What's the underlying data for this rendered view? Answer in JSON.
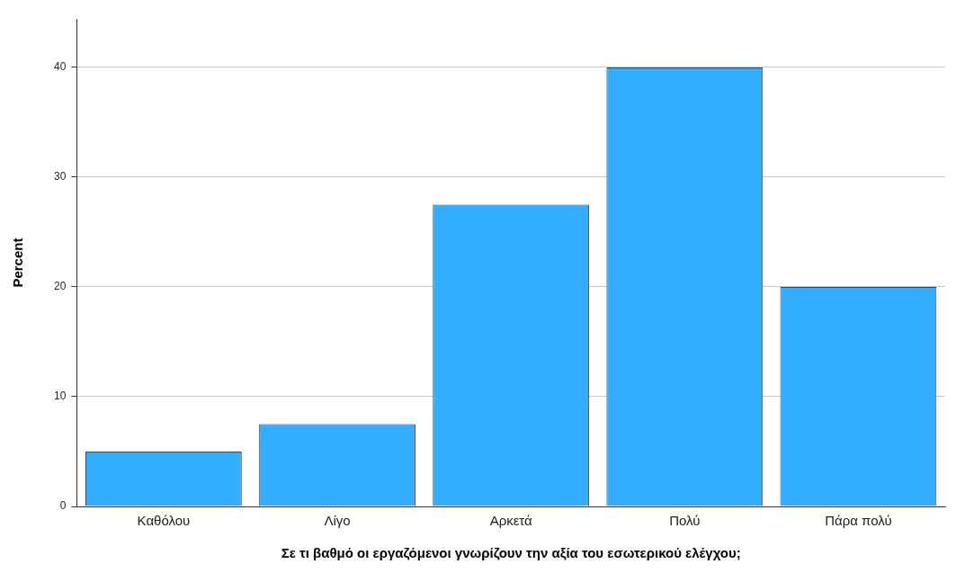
{
  "chart_data": {
    "type": "bar",
    "xlabel": "Σε τι βαθμό οι εργαζόμενοι γνωρίζουν την αξία του εσωτερικού ελέγχου;",
    "ylabel": "Percent",
    "categories": [
      "Καθόλου",
      "Λίγο",
      "Αρκετά",
      "Πολύ",
      "Πάρα πολύ"
    ],
    "values": [
      5,
      7.5,
      27.5,
      40,
      20
    ],
    "color": "#33adff",
    "ylim": [
      0,
      44.4
    ],
    "yticks": [
      0,
      10,
      20,
      30,
      40
    ],
    "grid": "y",
    "legend": false
  }
}
